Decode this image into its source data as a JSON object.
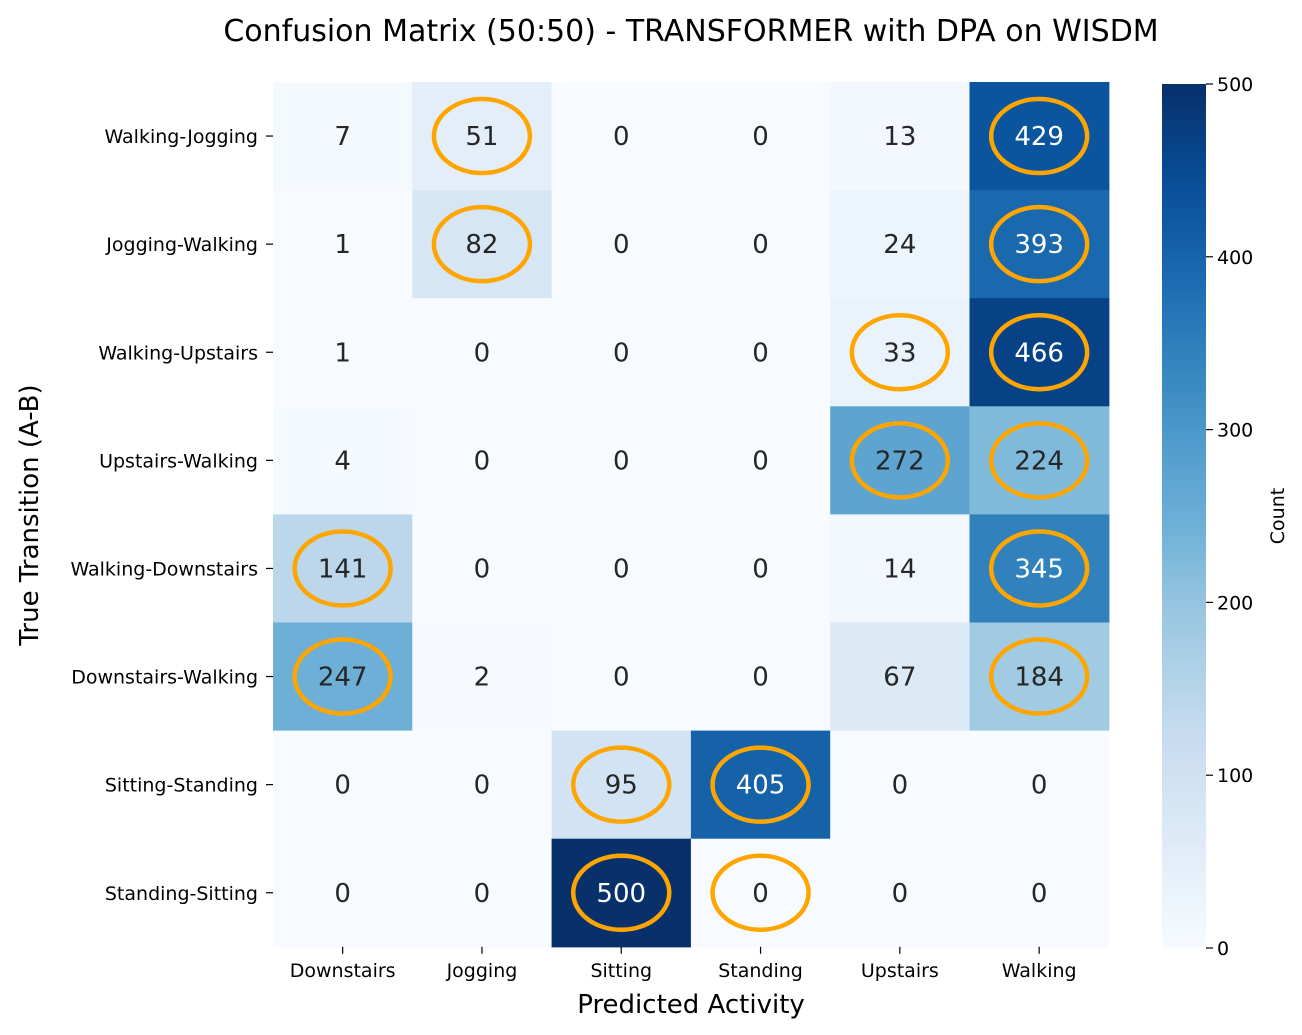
{
  "chart_data": {
    "type": "heatmap",
    "title": "Confusion Matrix (50:50) - TRANSFORMER with DPA on WISDM",
    "xlabel": "Predicted Activity",
    "ylabel": "True Transition (A-B)",
    "x_categories": [
      "Downstairs",
      "Jogging",
      "Sitting",
      "Standing",
      "Upstairs",
      "Walking"
    ],
    "y_categories": [
      "Walking-Jogging",
      "Jogging-Walking",
      "Walking-Upstairs",
      "Upstairs-Walking",
      "Walking-Downstairs",
      "Downstairs-Walking",
      "Sitting-Standing",
      "Standing-Sitting"
    ],
    "values": [
      [
        7,
        51,
        0,
        0,
        13,
        429
      ],
      [
        1,
        82,
        0,
        0,
        24,
        393
      ],
      [
        1,
        0,
        0,
        0,
        33,
        466
      ],
      [
        4,
        0,
        0,
        0,
        272,
        224
      ],
      [
        141,
        0,
        0,
        0,
        14,
        345
      ],
      [
        247,
        2,
        0,
        0,
        67,
        184
      ],
      [
        0,
        0,
        95,
        405,
        0,
        0
      ],
      [
        0,
        0,
        500,
        0,
        0,
        0
      ]
    ],
    "highlighted_cells": [
      [
        0,
        1
      ],
      [
        0,
        5
      ],
      [
        1,
        1
      ],
      [
        1,
        5
      ],
      [
        2,
        4
      ],
      [
        2,
        5
      ],
      [
        3,
        4
      ],
      [
        3,
        5
      ],
      [
        4,
        0
      ],
      [
        4,
        5
      ],
      [
        5,
        0
      ],
      [
        5,
        5
      ],
      [
        6,
        2
      ],
      [
        6,
        3
      ],
      [
        7,
        2
      ],
      [
        7,
        3
      ]
    ],
    "colorbar": {
      "label": "Count",
      "min": 0,
      "max": 500,
      "ticks": [
        0,
        100,
        200,
        300,
        400,
        500
      ],
      "colormap": "Blues"
    },
    "highlight_color": "#FFA500"
  }
}
